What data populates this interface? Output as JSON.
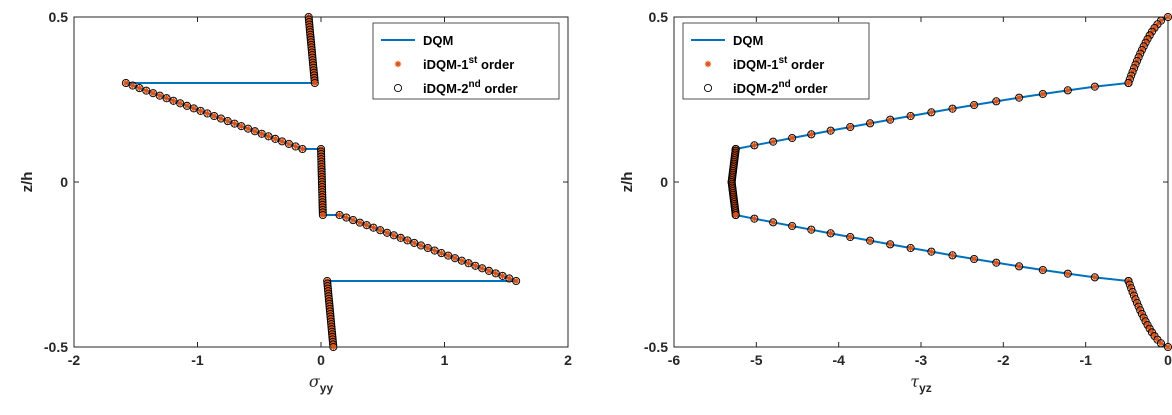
{
  "colors": {
    "line": "#0072BD",
    "star": "#D95319",
    "axis": "#262626"
  },
  "chart_data": [
    {
      "type": "line",
      "ylabel": "z/h",
      "xlabel_main": "σ",
      "xlabel_sub": "yy",
      "xlim": [
        -2,
        2
      ],
      "ylim": [
        -0.5,
        0.5
      ],
      "xticks": [
        "-2",
        "-1",
        "0",
        "1",
        "2"
      ],
      "yticks": [
        "0.5",
        "0",
        "-0.5"
      ],
      "legend": {
        "position": "top-right",
        "entries": [
          {
            "marker": "line",
            "main": "DQM",
            "sup": "",
            "tail": ""
          },
          {
            "marker": "star",
            "main": "iDQM-1",
            "sup": "st",
            "tail": " order"
          },
          {
            "marker": "circle",
            "main": "iDQM-2",
            "sup": "nd",
            "tail": " order"
          }
        ]
      },
      "series": [
        {
          "name": "DQM",
          "layers": [
            {
              "z": [
                0.5,
                0.3
              ],
              "x": [
                -0.1,
                -0.05
              ]
            },
            {
              "z": [
                0.3,
                0.1
              ],
              "x": [
                -1.58,
                -0.15
              ]
            },
            {
              "z": [
                0.1,
                -0.1
              ],
              "x": [
                0.0,
                0.015
              ]
            },
            {
              "z": [
                -0.1,
                -0.3
              ],
              "x": [
                0.15,
                1.58
              ]
            },
            {
              "z": [
                -0.3,
                -0.5
              ],
              "x": [
                0.05,
                0.1
              ]
            }
          ],
          "interfaces": [
            [
              0.3,
              -0.05,
              -1.58
            ],
            [
              0.1,
              -0.15,
              0.0
            ],
            [
              -0.1,
              0.015,
              0.15
            ],
            [
              -0.3,
              1.58,
              0.05
            ]
          ]
        }
      ]
    },
    {
      "type": "line",
      "ylabel": "z/h",
      "xlabel_main": "τ",
      "xlabel_sub": "yz",
      "xlim": [
        -6,
        0
      ],
      "ylim": [
        -0.5,
        0.5
      ],
      "xticks": [
        "-6",
        "-5",
        "-4",
        "-3",
        "-2",
        "-1",
        "0"
      ],
      "yticks": [
        "0.5",
        "0",
        "-0.5"
      ],
      "legend": {
        "position": "top-left",
        "entries": [
          {
            "marker": "line",
            "main": "DQM",
            "sup": "",
            "tail": ""
          },
          {
            "marker": "star",
            "main": "iDQM-1",
            "sup": "st",
            "tail": " order"
          },
          {
            "marker": "circle",
            "main": "iDQM-2",
            "sup": "nd",
            "tail": " order"
          }
        ]
      },
      "series": [
        {
          "name": "DQM",
          "profile": [
            {
              "z": 0.5,
              "x": 0.0
            },
            {
              "z": 0.3,
              "x": -0.48
            },
            {
              "z": 0.1,
              "x": -5.25
            },
            {
              "z": 0.0,
              "x": -5.3
            },
            {
              "z": -0.1,
              "x": -5.25
            },
            {
              "z": -0.3,
              "x": -0.48
            },
            {
              "z": -0.5,
              "x": 0.0
            }
          ]
        }
      ]
    }
  ]
}
